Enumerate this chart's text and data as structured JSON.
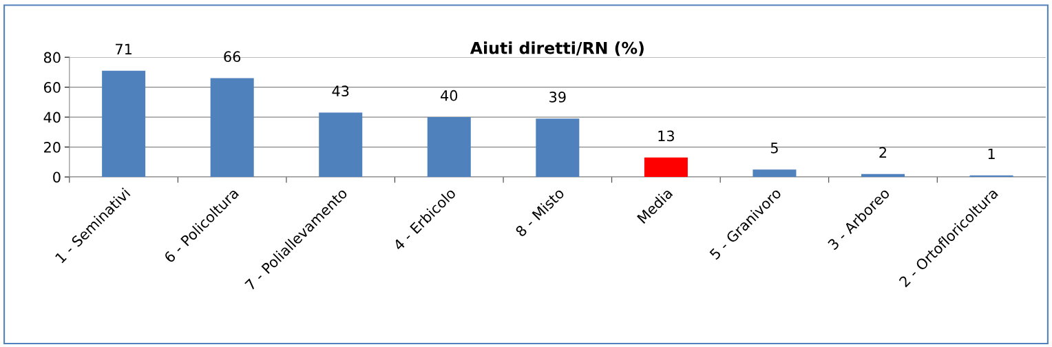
{
  "chart_data": {
    "type": "bar",
    "title": "Aiuti diretti/RN (%)",
    "categories": [
      "1 - Seminativi",
      "6 - Policoltura",
      "7 - Poliallevamento",
      "4 - Erbicolo",
      "8 - Misto",
      "Media",
      "5 - Granivoro",
      "3 - Arboreo",
      "2 - Ortofloricoltura"
    ],
    "values": [
      71,
      66,
      43,
      40,
      39,
      13,
      5,
      2,
      1
    ],
    "colors": [
      "#4f81bd",
      "#4f81bd",
      "#4f81bd",
      "#4f81bd",
      "#4f81bd",
      "#ff0000",
      "#4f81bd",
      "#4f81bd",
      "#4f81bd"
    ],
    "ylim": [
      0,
      80
    ],
    "yticks": [
      0,
      20,
      40,
      60,
      80
    ],
    "grid": "y",
    "data_labels": true
  }
}
